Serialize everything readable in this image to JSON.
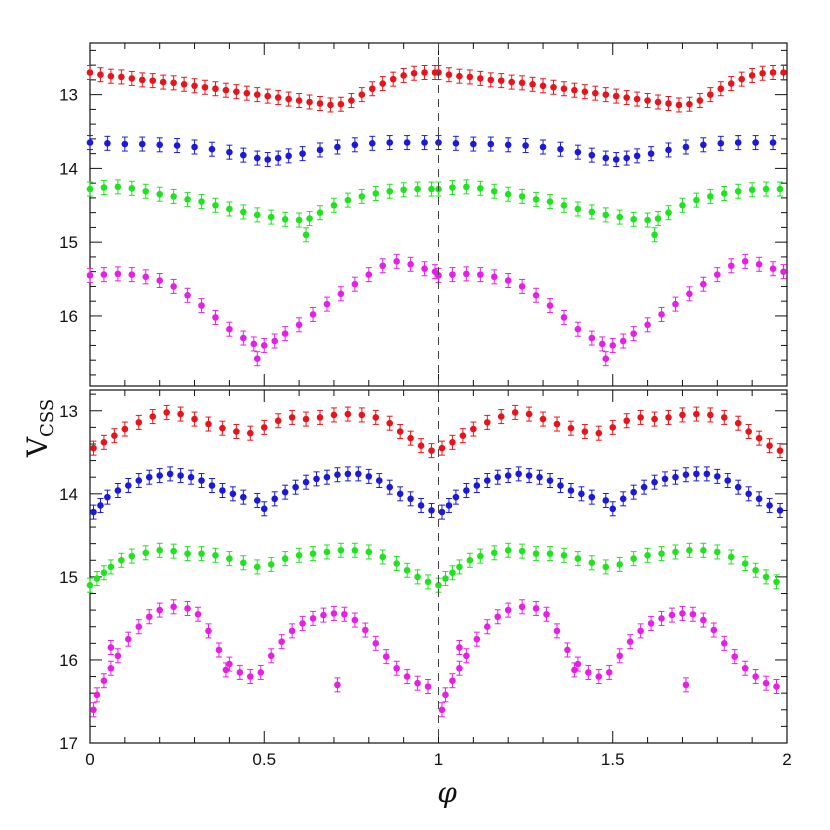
{
  "chart_data": {
    "type": "scatter",
    "description_note": "Two stacked phase-folded light-curve panels sharing the phi axis",
    "xlabel": "φ",
    "ylabel_main": "V",
    "ylabel_sub": "CSS",
    "xlim": [
      0,
      2
    ],
    "x_ticks": [
      "0",
      "0.5",
      "1",
      "1.5",
      "2"
    ],
    "reference_line_x": 1,
    "panels": [
      {
        "name": "top",
        "ylim": [
          12.3,
          16.95
        ],
        "y_ticks": [
          "13",
          "14",
          "15",
          "16"
        ],
        "series": [
          {
            "name": "red",
            "color": "#e8141a",
            "points": [
              [
                0.0,
                12.7
              ],
              [
                0.03,
                12.73
              ],
              [
                0.06,
                12.75
              ],
              [
                0.09,
                12.76
              ],
              [
                0.12,
                12.78
              ],
              [
                0.15,
                12.8
              ],
              [
                0.18,
                12.81
              ],
              [
                0.21,
                12.83
              ],
              [
                0.24,
                12.84
              ],
              [
                0.27,
                12.86
              ],
              [
                0.3,
                12.88
              ],
              [
                0.33,
                12.9
              ],
              [
                0.36,
                12.92
              ],
              [
                0.39,
                12.94
              ],
              [
                0.42,
                12.96
              ],
              [
                0.45,
                12.98
              ],
              [
                0.48,
                13.0
              ],
              [
                0.51,
                13.02
              ],
              [
                0.54,
                13.04
              ],
              [
                0.57,
                13.06
              ],
              [
                0.6,
                13.08
              ],
              [
                0.63,
                13.1
              ],
              [
                0.66,
                13.12
              ],
              [
                0.69,
                13.14
              ],
              [
                0.72,
                13.13
              ],
              [
                0.75,
                13.08
              ],
              [
                0.78,
                13.0
              ],
              [
                0.81,
                12.92
              ],
              [
                0.84,
                12.85
              ],
              [
                0.87,
                12.79
              ],
              [
                0.9,
                12.74
              ],
              [
                0.93,
                12.71
              ],
              [
                0.96,
                12.7
              ],
              [
                0.99,
                12.7
              ]
            ]
          },
          {
            "name": "blue",
            "color": "#1a1ad8",
            "points": [
              [
                0.0,
                13.65
              ],
              [
                0.05,
                13.66
              ],
              [
                0.1,
                13.67
              ],
              [
                0.15,
                13.67
              ],
              [
                0.2,
                13.68
              ],
              [
                0.25,
                13.69
              ],
              [
                0.3,
                13.71
              ],
              [
                0.35,
                13.74
              ],
              [
                0.4,
                13.78
              ],
              [
                0.44,
                13.82
              ],
              [
                0.48,
                13.86
              ],
              [
                0.51,
                13.88
              ],
              [
                0.54,
                13.86
              ],
              [
                0.57,
                13.83
              ],
              [
                0.61,
                13.8
              ],
              [
                0.66,
                13.75
              ],
              [
                0.71,
                13.71
              ],
              [
                0.76,
                13.68
              ],
              [
                0.81,
                13.66
              ],
              [
                0.86,
                13.65
              ],
              [
                0.91,
                13.65
              ],
              [
                0.96,
                13.65
              ]
            ]
          },
          {
            "name": "green",
            "color": "#1ee41e",
            "points": [
              [
                0.0,
                14.28
              ],
              [
                0.04,
                14.26
              ],
              [
                0.08,
                14.25
              ],
              [
                0.12,
                14.27
              ],
              [
                0.16,
                14.31
              ],
              [
                0.2,
                14.35
              ],
              [
                0.24,
                14.38
              ],
              [
                0.28,
                14.42
              ],
              [
                0.32,
                14.45
              ],
              [
                0.36,
                14.5
              ],
              [
                0.4,
                14.55
              ],
              [
                0.44,
                14.59
              ],
              [
                0.48,
                14.63
              ],
              [
                0.52,
                14.66
              ],
              [
                0.56,
                14.69
              ],
              [
                0.6,
                14.7
              ],
              [
                0.63,
                14.68
              ],
              [
                0.66,
                14.6
              ],
              [
                0.7,
                14.5
              ],
              [
                0.74,
                14.43
              ],
              [
                0.78,
                14.38
              ],
              [
                0.82,
                14.34
              ],
              [
                0.86,
                14.31
              ],
              [
                0.9,
                14.29
              ],
              [
                0.94,
                14.28
              ],
              [
                0.98,
                14.28
              ],
              [
                0.62,
                14.9
              ]
            ]
          },
          {
            "name": "magenta",
            "color": "#e81ee8",
            "points": [
              [
                0.0,
                15.45
              ],
              [
                0.04,
                15.44
              ],
              [
                0.08,
                15.43
              ],
              [
                0.12,
                15.44
              ],
              [
                0.16,
                15.47
              ],
              [
                0.2,
                15.52
              ],
              [
                0.24,
                15.6
              ],
              [
                0.28,
                15.72
              ],
              [
                0.32,
                15.86
              ],
              [
                0.36,
                16.02
              ],
              [
                0.4,
                16.18
              ],
              [
                0.44,
                16.3
              ],
              [
                0.47,
                16.38
              ],
              [
                0.5,
                16.4
              ],
              [
                0.53,
                16.34
              ],
              [
                0.56,
                16.24
              ],
              [
                0.6,
                16.12
              ],
              [
                0.64,
                15.98
              ],
              [
                0.68,
                15.84
              ],
              [
                0.72,
                15.7
              ],
              [
                0.76,
                15.57
              ],
              [
                0.8,
                15.44
              ],
              [
                0.84,
                15.32
              ],
              [
                0.88,
                15.26
              ],
              [
                0.92,
                15.3
              ],
              [
                0.96,
                15.36
              ],
              [
                0.99,
                15.4
              ],
              [
                0.48,
                16.58
              ]
            ]
          }
        ]
      },
      {
        "name": "bottom",
        "ylim": [
          12.75,
          17.0
        ],
        "y_ticks": [
          "13",
          "14",
          "15",
          "16",
          "17"
        ],
        "series": [
          {
            "name": "red",
            "color": "#e8141a",
            "points": [
              [
                0.01,
                13.45
              ],
              [
                0.04,
                13.38
              ],
              [
                0.07,
                13.3
              ],
              [
                0.1,
                13.22
              ],
              [
                0.14,
                13.14
              ],
              [
                0.18,
                13.07
              ],
              [
                0.22,
                13.02
              ],
              [
                0.26,
                13.04
              ],
              [
                0.3,
                13.1
              ],
              [
                0.34,
                13.16
              ],
              [
                0.38,
                13.21
              ],
              [
                0.42,
                13.25
              ],
              [
                0.46,
                13.27
              ],
              [
                0.5,
                13.2
              ],
              [
                0.54,
                13.12
              ],
              [
                0.58,
                13.08
              ],
              [
                0.62,
                13.1
              ],
              [
                0.66,
                13.08
              ],
              [
                0.7,
                13.05
              ],
              [
                0.74,
                13.04
              ],
              [
                0.78,
                13.05
              ],
              [
                0.82,
                13.08
              ],
              [
                0.86,
                13.15
              ],
              [
                0.89,
                13.25
              ],
              [
                0.92,
                13.33
              ],
              [
                0.95,
                13.42
              ],
              [
                0.98,
                13.48
              ]
            ]
          },
          {
            "name": "blue",
            "color": "#1a1ad8",
            "points": [
              [
                0.01,
                14.22
              ],
              [
                0.03,
                14.14
              ],
              [
                0.05,
                14.04
              ],
              [
                0.08,
                13.96
              ],
              [
                0.11,
                13.9
              ],
              [
                0.14,
                13.84
              ],
              [
                0.17,
                13.8
              ],
              [
                0.2,
                13.78
              ],
              [
                0.23,
                13.76
              ],
              [
                0.26,
                13.78
              ],
              [
                0.29,
                13.8
              ],
              [
                0.32,
                13.84
              ],
              [
                0.35,
                13.9
              ],
              [
                0.38,
                13.96
              ],
              [
                0.41,
                14.0
              ],
              [
                0.44,
                14.04
              ],
              [
                0.48,
                14.08
              ],
              [
                0.5,
                14.18
              ],
              [
                0.53,
                14.06
              ],
              [
                0.56,
                13.98
              ],
              [
                0.59,
                13.92
              ],
              [
                0.62,
                13.86
              ],
              [
                0.65,
                13.82
              ],
              [
                0.68,
                13.8
              ],
              [
                0.71,
                13.77
              ],
              [
                0.74,
                13.76
              ],
              [
                0.77,
                13.76
              ],
              [
                0.8,
                13.79
              ],
              [
                0.83,
                13.84
              ],
              [
                0.86,
                13.92
              ],
              [
                0.89,
                14.0
              ],
              [
                0.92,
                14.06
              ],
              [
                0.95,
                14.14
              ],
              [
                0.98,
                14.2
              ]
            ]
          },
          {
            "name": "green",
            "color": "#1ee41e",
            "points": [
              [
                0.0,
                15.1
              ],
              [
                0.02,
                15.02
              ],
              [
                0.04,
                14.95
              ],
              [
                0.06,
                14.88
              ],
              [
                0.09,
                14.8
              ],
              [
                0.12,
                14.75
              ],
              [
                0.16,
                14.71
              ],
              [
                0.2,
                14.68
              ],
              [
                0.24,
                14.69
              ],
              [
                0.28,
                14.72
              ],
              [
                0.32,
                14.72
              ],
              [
                0.36,
                14.74
              ],
              [
                0.4,
                14.78
              ],
              [
                0.44,
                14.83
              ],
              [
                0.48,
                14.88
              ],
              [
                0.52,
                14.85
              ],
              [
                0.56,
                14.78
              ],
              [
                0.6,
                14.74
              ],
              [
                0.64,
                14.72
              ],
              [
                0.68,
                14.7
              ],
              [
                0.72,
                14.68
              ],
              [
                0.76,
                14.68
              ],
              [
                0.8,
                14.7
              ],
              [
                0.84,
                14.76
              ],
              [
                0.88,
                14.84
              ],
              [
                0.91,
                14.92
              ],
              [
                0.94,
                15.0
              ],
              [
                0.97,
                15.06
              ]
            ]
          },
          {
            "name": "magenta",
            "color": "#e81ee8",
            "points": [
              [
                0.01,
                16.6
              ],
              [
                0.02,
                16.42
              ],
              [
                0.04,
                16.25
              ],
              [
                0.06,
                16.1
              ],
              [
                0.08,
                15.95
              ],
              [
                0.11,
                15.75
              ],
              [
                0.14,
                15.6
              ],
              [
                0.17,
                15.48
              ],
              [
                0.2,
                15.4
              ],
              [
                0.24,
                15.36
              ],
              [
                0.28,
                15.38
              ],
              [
                0.31,
                15.45
              ],
              [
                0.34,
                15.65
              ],
              [
                0.37,
                15.88
              ],
              [
                0.4,
                16.05
              ],
              [
                0.43,
                16.15
              ],
              [
                0.46,
                16.2
              ],
              [
                0.49,
                16.15
              ],
              [
                0.52,
                15.95
              ],
              [
                0.55,
                15.78
              ],
              [
                0.58,
                15.65
              ],
              [
                0.61,
                15.56
              ],
              [
                0.64,
                15.5
              ],
              [
                0.67,
                15.46
              ],
              [
                0.7,
                15.44
              ],
              [
                0.73,
                15.45
              ],
              [
                0.76,
                15.52
              ],
              [
                0.79,
                15.64
              ],
              [
                0.82,
                15.8
              ],
              [
                0.85,
                15.96
              ],
              [
                0.88,
                16.1
              ],
              [
                0.91,
                16.2
              ],
              [
                0.94,
                16.28
              ],
              [
                0.97,
                16.32
              ],
              [
                0.71,
                16.3
              ],
              [
                0.39,
                16.12
              ],
              [
                0.06,
                15.85
              ]
            ]
          }
        ]
      }
    ]
  }
}
